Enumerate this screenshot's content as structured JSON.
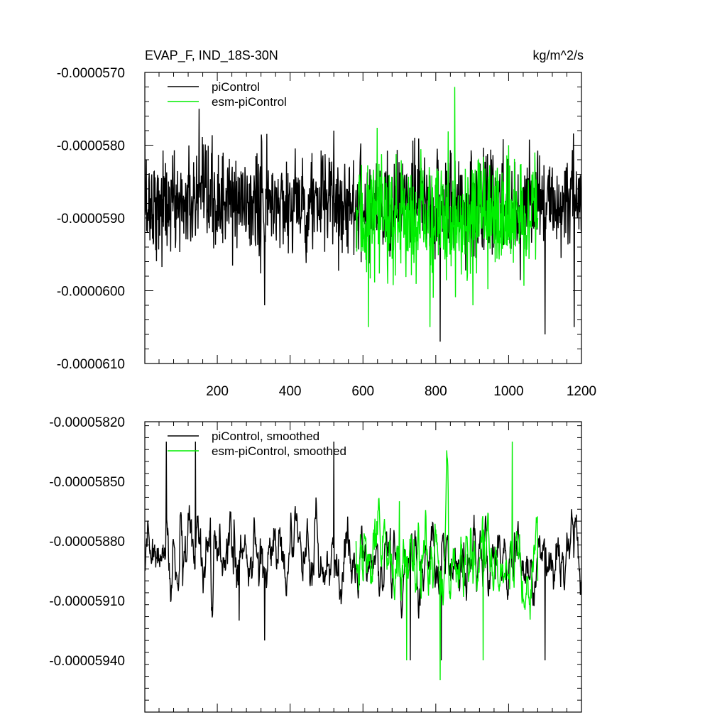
{
  "chart_data": [
    {
      "type": "line",
      "title_left": "EVAP_F, IND_18S-30N",
      "title_right": "kg/m^2/s",
      "xlim": [
        1,
        1200
      ],
      "ylim": [
        -6.1e-05,
        -5.7e-05
      ],
      "xticks": [
        200,
        400,
        600,
        800,
        1000,
        1200
      ],
      "yticks": [
        -5.7e-05,
        -5.8e-05,
        -5.9e-05,
        -6e-05,
        -6.1e-05
      ],
      "ytick_labels": [
        "-0.0000570",
        "-0.0000580",
        "-0.0000590",
        "-0.0000600",
        "-0.0000610"
      ],
      "legend_position": "top-left",
      "series": [
        {
          "name": "piControl",
          "color": "#000000",
          "x_start": 1,
          "x_end": 1200,
          "mean": -5.88e-05,
          "sd": 3.5e-07,
          "values": [
            [
              1,
              -5.78e-05
            ],
            [
              130,
              -5.87e-05
            ],
            [
              150,
              -5.75e-05
            ],
            [
              300,
              -5.88e-05
            ],
            [
              330,
              -6.02e-05
            ],
            [
              520,
              -5.78e-05
            ],
            [
              600,
              -5.9e-05
            ],
            [
              812,
              -6.07e-05
            ],
            [
              1100,
              -6.06e-05
            ],
            [
              1180,
              -6.05e-05
            ],
            [
              1200,
              -5.92e-05
            ]
          ]
        },
        {
          "name": "esm-piControl",
          "color": "#00ee00",
          "x_start": 581,
          "x_end": 1080,
          "mean": -5.9e-05,
          "sd": 4e-07,
          "values": [
            [
              581,
              -5.89e-05
            ],
            [
              615,
              -6.05e-05
            ],
            [
              784,
              -6.05e-05
            ],
            [
              852,
              -5.72e-05
            ],
            [
              902,
              -6.02e-05
            ],
            [
              1000,
              -5.8e-05
            ],
            [
              1080,
              -5.9e-05
            ]
          ]
        }
      ]
    },
    {
      "type": "line",
      "title_left": "",
      "title_right": "",
      "xlim": [
        1,
        1200
      ],
      "ylim": [
        -5.966e-05,
        -5.82e-05
      ],
      "xticks": [
        200,
        400,
        600,
        800,
        1000,
        1200
      ],
      "yticks": [
        -5.82e-05,
        -5.85e-05,
        -5.88e-05,
        -5.91e-05,
        -5.94e-05
      ],
      "ytick_labels": [
        "-0.00005820",
        "-0.00005850",
        "-0.00005880",
        "-0.00005910",
        "-0.00005940"
      ],
      "legend_position": "top-left",
      "series": [
        {
          "name": "piControl, smoothed",
          "color": "#000000",
          "x_start": 1,
          "x_end": 1200,
          "mean": -5.89e-05,
          "sd": 1e-07,
          "values": [
            [
              60,
              -5.83e-05
            ],
            [
              140,
              -5.83e-05
            ],
            [
              260,
              -5.92e-05
            ],
            [
              330,
              -5.93e-05
            ],
            [
              520,
              -5.83e-05
            ],
            [
              730,
              -5.94e-05
            ],
            [
              815,
              -5.94e-05
            ],
            [
              1100,
              -5.94e-05
            ],
            [
              1200,
              -5.9e-05
            ]
          ]
        },
        {
          "name": "esm-piControl, smoothed",
          "color": "#00ee00",
          "x_start": 581,
          "x_end": 1080,
          "mean": -5.89e-05,
          "sd": 1.2e-07,
          "values": [
            [
              581,
              -5.88e-05
            ],
            [
              700,
              -5.86e-05
            ],
            [
              720,
              -5.94e-05
            ],
            [
              812,
              -5.95e-05
            ],
            [
              930,
              -5.94e-05
            ],
            [
              1010,
              -5.83e-05
            ],
            [
              1080,
              -5.9e-05
            ]
          ]
        }
      ]
    }
  ]
}
